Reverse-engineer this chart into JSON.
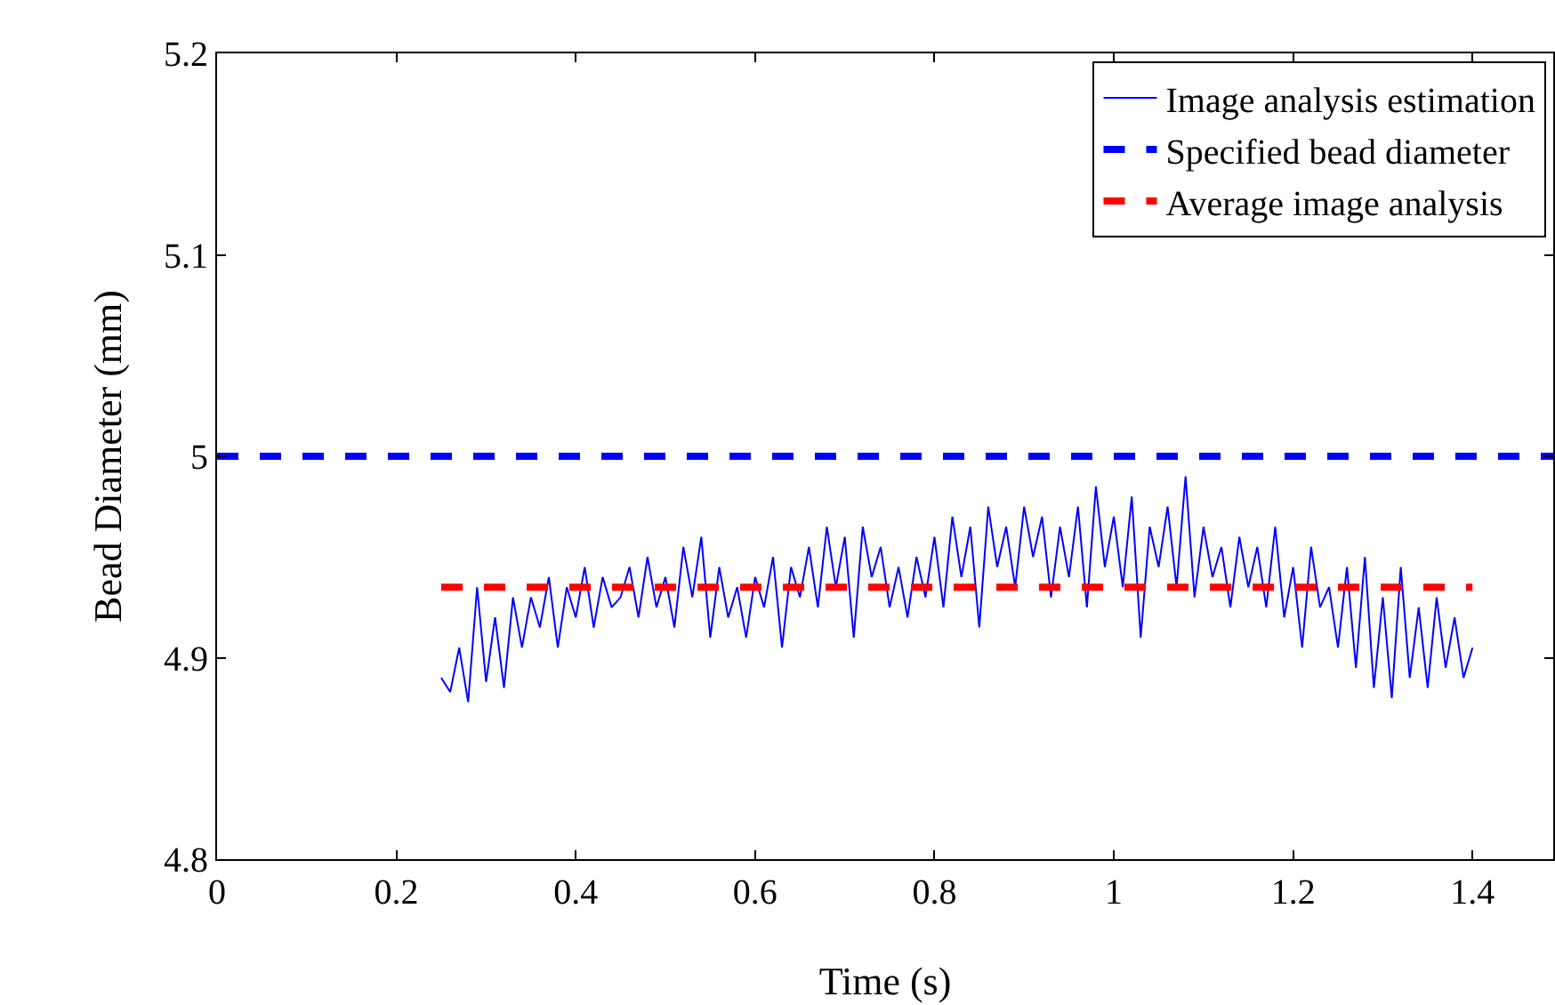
{
  "chart_data": {
    "type": "line",
    "xlabel": "Time (s)",
    "ylabel": "Bead Diameter (mm)",
    "xlim": [
      0,
      1.49
    ],
    "xticks": [
      0,
      0.2,
      0.4,
      0.6,
      0.8,
      1,
      1.2,
      1.4
    ],
    "ylim": [
      4.8,
      5.2
    ],
    "yticks": [
      4.8,
      4.9,
      5,
      5.1,
      5.2
    ],
    "grid": false,
    "legend": "top right",
    "series": [
      {
        "name": "Image analysis estimation",
        "color": "#0000ff",
        "line_style": "solid",
        "x": [
          0.25,
          0.26,
          0.27,
          0.28,
          0.29,
          0.3,
          0.31,
          0.32,
          0.33,
          0.34,
          0.35,
          0.36,
          0.37,
          0.38,
          0.39,
          0.4,
          0.41,
          0.42,
          0.43,
          0.44,
          0.45,
          0.46,
          0.47,
          0.48,
          0.49,
          0.5,
          0.51,
          0.52,
          0.53,
          0.54,
          0.55,
          0.56,
          0.57,
          0.58,
          0.59,
          0.6,
          0.61,
          0.62,
          0.63,
          0.64,
          0.65,
          0.66,
          0.67,
          0.68,
          0.69,
          0.7,
          0.71,
          0.72,
          0.73,
          0.74,
          0.75,
          0.76,
          0.77,
          0.78,
          0.79,
          0.8,
          0.81,
          0.82,
          0.83,
          0.84,
          0.85,
          0.86,
          0.87,
          0.88,
          0.89,
          0.9,
          0.91,
          0.92,
          0.93,
          0.94,
          0.95,
          0.96,
          0.97,
          0.98,
          0.99,
          1.0,
          1.01,
          1.02,
          1.03,
          1.04,
          1.05,
          1.06,
          1.07,
          1.08,
          1.09,
          1.1,
          1.11,
          1.12,
          1.13,
          1.14,
          1.15,
          1.16,
          1.17,
          1.18,
          1.19,
          1.2,
          1.21,
          1.22,
          1.23,
          1.24,
          1.25,
          1.26,
          1.27,
          1.28,
          1.29,
          1.3,
          1.31,
          1.32,
          1.33,
          1.34,
          1.35,
          1.36,
          1.37,
          1.38,
          1.39,
          1.4
        ],
        "values": [
          4.89,
          4.883,
          4.905,
          4.878,
          4.935,
          4.888,
          4.92,
          4.885,
          4.93,
          4.905,
          4.93,
          4.915,
          4.94,
          4.905,
          4.935,
          4.92,
          4.945,
          4.915,
          4.94,
          4.925,
          4.93,
          4.945,
          4.92,
          4.95,
          4.925,
          4.94,
          4.915,
          4.955,
          4.93,
          4.96,
          4.91,
          4.945,
          4.92,
          4.935,
          4.91,
          4.94,
          4.925,
          4.95,
          4.905,
          4.945,
          4.93,
          4.955,
          4.925,
          4.965,
          4.935,
          4.96,
          4.91,
          4.965,
          4.94,
          4.955,
          4.925,
          4.945,
          4.92,
          4.95,
          4.93,
          4.96,
          4.925,
          4.97,
          4.94,
          4.965,
          4.915,
          4.975,
          4.945,
          4.965,
          4.935,
          4.975,
          4.95,
          4.97,
          4.93,
          4.965,
          4.94,
          4.975,
          4.925,
          4.985,
          4.945,
          4.97,
          4.935,
          4.98,
          4.91,
          4.965,
          4.945,
          4.975,
          4.935,
          4.99,
          4.93,
          4.965,
          4.94,
          4.955,
          4.925,
          4.96,
          4.935,
          4.955,
          4.925,
          4.965,
          4.92,
          4.945,
          4.905,
          4.955,
          4.925,
          4.935,
          4.905,
          4.945,
          4.895,
          4.95,
          4.885,
          4.93,
          4.88,
          4.945,
          4.89,
          4.925,
          4.885,
          4.93,
          4.895,
          4.92,
          4.89,
          4.905
        ]
      },
      {
        "name": "Specified bead diameter",
        "color": "#0000ff",
        "line_style": "dashed",
        "x": [
          0,
          1.49
        ],
        "values": [
          5,
          5
        ]
      },
      {
        "name": "Average image analysis",
        "color": "#ff0000",
        "line_style": "dashed",
        "x": [
          0.25,
          1.4
        ],
        "values": [
          4.935,
          4.935
        ]
      }
    ]
  }
}
